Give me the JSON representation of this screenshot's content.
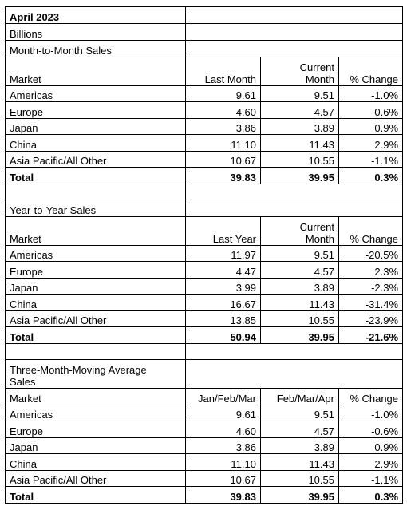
{
  "title": "April 2023",
  "unit": "Billions",
  "sections": [
    {
      "title": "Month-to-Month Sales",
      "header": [
        "Market",
        "Last Month",
        "Current Month",
        "% Change"
      ],
      "rows": [
        [
          "Americas",
          "9.61",
          "9.51",
          "-1.0%"
        ],
        [
          "Europe",
          "4.60",
          "4.57",
          "-0.6%"
        ],
        [
          "Japan",
          "3.86",
          "3.89",
          "0.9%"
        ],
        [
          "China",
          "11.10",
          "11.43",
          "2.9%"
        ],
        [
          "Asia Pacific/All Other",
          "10.67",
          "10.55",
          "-1.1%"
        ]
      ],
      "total": [
        "Total",
        "39.83",
        "39.95",
        "0.3%"
      ]
    },
    {
      "title": "Year-to-Year Sales",
      "header": [
        "Market",
        "Last Year",
        "Current Month",
        "% Change"
      ],
      "rows": [
        [
          "Americas",
          "11.97",
          "9.51",
          "-20.5%"
        ],
        [
          "Europe",
          "4.47",
          "4.57",
          "2.3%"
        ],
        [
          "Japan",
          "3.99",
          "3.89",
          "-2.3%"
        ],
        [
          "China",
          "16.67",
          "11.43",
          "-31.4%"
        ],
        [
          "Asia Pacific/All Other",
          "13.85",
          "10.55",
          "-23.9%"
        ]
      ],
      "total": [
        "Total",
        "50.94",
        "39.95",
        "-21.6%"
      ]
    },
    {
      "title": "Three-Month-Moving Average Sales",
      "header": [
        "Market",
        "Jan/Feb/Mar",
        "Feb/Mar/Apr",
        "% Change"
      ],
      "rows": [
        [
          "Americas",
          "9.61",
          "9.51",
          "-1.0%"
        ],
        [
          "Europe",
          "4.60",
          "4.57",
          "-0.6%"
        ],
        [
          "Japan",
          "3.86",
          "3.89",
          "0.9%"
        ],
        [
          "China",
          "11.10",
          "11.43",
          "2.9%"
        ],
        [
          "Asia Pacific/All Other",
          "10.67",
          "10.55",
          "-1.1%"
        ]
      ],
      "total": [
        "Total",
        "39.83",
        "39.95",
        "0.3%"
      ]
    }
  ]
}
